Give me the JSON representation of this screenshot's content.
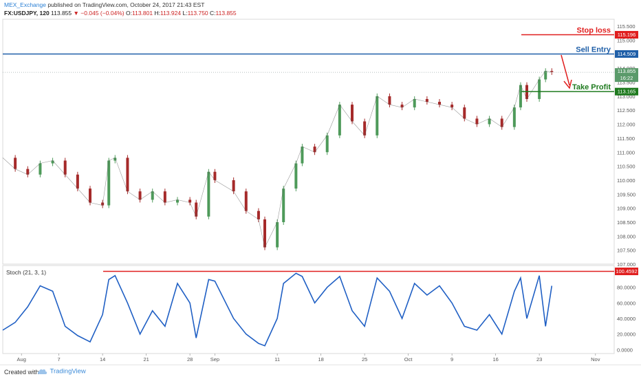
{
  "header": {
    "author": "MEX_Exchange",
    "published": " published on TradingView.com, October 24, 2017 21:43 EST",
    "symbol": "FX:USDJPY, 120",
    "last": "113.855",
    "change": "▼ −0.045 (−0.04%)",
    "ohlc_o_label": "O:",
    "ohlc_o": "113.801",
    "ohlc_h_label": "H:",
    "ohlc_h": "113.924",
    "ohlc_l_label": "L:",
    "ohlc_l": "113.750",
    "ohlc_c_label": "C:",
    "ohlc_c": "113.855"
  },
  "footer": {
    "created": "Created with",
    "brand": "TradingView"
  },
  "colors": {
    "up": "#4e9a5a",
    "down": "#a52a2a",
    "blue": "#1f5fa8",
    "red": "#e01e1e",
    "green": "#1e7a1e",
    "stoch": "#1f5fc4"
  },
  "chart_data": [
    {
      "type": "line",
      "title": "USDJPY 120 price",
      "ylim": [
        107.0,
        115.75
      ],
      "y_ticks": [
        "115.500",
        "115.000",
        "114.500",
        "114.000",
        "113.500",
        "113.000",
        "112.500",
        "112.000",
        "111.500",
        "111.000",
        "110.500",
        "110.000",
        "109.500",
        "109.000",
        "108.500",
        "108.000",
        "107.500",
        "107.000"
      ],
      "x_ticks": [
        "Aug",
        "7",
        "14",
        "21",
        "28",
        "Sep",
        "11",
        "18",
        "25",
        "Oct",
        "9",
        "16",
        "23",
        "Nov"
      ],
      "x_tick_dates": [
        "2017-08-01",
        "2017-08-07",
        "2017-08-14",
        "2017-08-21",
        "2017-08-28",
        "2017-09-01",
        "2017-09-11",
        "2017-09-18",
        "2017-09-25",
        "2017-10-02",
        "2017-10-09",
        "2017-10-16",
        "2017-10-23",
        "2017-11-01"
      ],
      "x_range": [
        "2017-07-29",
        "2017-11-04"
      ],
      "series": [
        {
          "values": [
            [
              "2017-07-29",
              110.8
            ],
            [
              "2017-07-31",
              110.4
            ],
            [
              "2017-08-02",
              110.2
            ],
            [
              "2017-08-04",
              110.6
            ],
            [
              "2017-08-06",
              110.7
            ],
            [
              "2017-08-08",
              110.2
            ],
            [
              "2017-08-10",
              109.7
            ],
            [
              "2017-08-12",
              109.2
            ],
            [
              "2017-08-14",
              109.1
            ],
            [
              "2017-08-15",
              110.7
            ],
            [
              "2017-08-16",
              110.8
            ],
            [
              "2017-08-18",
              109.6
            ],
            [
              "2017-08-20",
              109.3
            ],
            [
              "2017-08-22",
              109.6
            ],
            [
              "2017-08-24",
              109.2
            ],
            [
              "2017-08-26",
              109.3
            ],
            [
              "2017-08-28",
              109.2
            ],
            [
              "2017-08-29",
              108.7
            ],
            [
              "2017-08-31",
              110.3
            ],
            [
              "2017-09-01",
              110.0
            ],
            [
              "2017-09-04",
              109.6
            ],
            [
              "2017-09-06",
              108.9
            ],
            [
              "2017-09-08",
              108.6
            ],
            [
              "2017-09-09",
              107.6
            ],
            [
              "2017-09-11",
              108.5
            ],
            [
              "2017-09-12",
              109.7
            ],
            [
              "2017-09-14",
              110.6
            ],
            [
              "2017-09-15",
              111.2
            ],
            [
              "2017-09-17",
              111.0
            ],
            [
              "2017-09-19",
              111.6
            ],
            [
              "2017-09-21",
              112.7
            ],
            [
              "2017-09-23",
              112.1
            ],
            [
              "2017-09-25",
              111.6
            ],
            [
              "2017-09-27",
              113.0
            ],
            [
              "2017-09-29",
              112.7
            ],
            [
              "2017-10-01",
              112.6
            ],
            [
              "2017-10-03",
              112.9
            ],
            [
              "2017-10-05",
              112.8
            ],
            [
              "2017-10-07",
              112.7
            ],
            [
              "2017-10-09",
              112.6
            ],
            [
              "2017-10-11",
              112.2
            ],
            [
              "2017-10-13",
              112.0
            ],
            [
              "2017-10-15",
              112.2
            ],
            [
              "2017-10-17",
              111.9
            ],
            [
              "2017-10-19",
              112.6
            ],
            [
              "2017-10-20",
              113.4
            ],
            [
              "2017-10-21",
              112.9
            ],
            [
              "2017-10-23",
              113.6
            ],
            [
              "2017-10-24",
              113.9
            ],
            [
              "2017-10-25",
              113.86
            ]
          ]
        }
      ],
      "price_labels": {
        "stop_loss": "115.196",
        "sell_entry": "114.509",
        "last": "113.855",
        "countdown": "16:22",
        "take_profit": "113.165"
      },
      "levels": {
        "stop_loss": 115.196,
        "sell_entry": 114.509,
        "take_profit": 113.165,
        "last": 113.855
      },
      "annotations": {
        "stop_loss": "Stop loss",
        "sell_entry": "Sell Entry",
        "take_profit": "Take Profit"
      }
    },
    {
      "type": "line",
      "title": "Stoch (21, 3, 1)",
      "ylim": [
        -5,
        108
      ],
      "y_ticks": [
        "80.0000",
        "60.0000",
        "40.0000",
        "20.0000",
        "0.0000"
      ],
      "level_label": "100.4592",
      "level": 100.4592,
      "series": [
        {
          "values": [
            [
              "2017-07-29",
              25
            ],
            [
              "2017-07-31",
              35
            ],
            [
              "2017-08-02",
              55
            ],
            [
              "2017-08-04",
              82
            ],
            [
              "2017-08-06",
              75
            ],
            [
              "2017-08-08",
              30
            ],
            [
              "2017-08-10",
              18
            ],
            [
              "2017-08-12",
              10
            ],
            [
              "2017-08-14",
              45
            ],
            [
              "2017-08-15",
              90
            ],
            [
              "2017-08-16",
              95
            ],
            [
              "2017-08-18",
              60
            ],
            [
              "2017-08-20",
              20
            ],
            [
              "2017-08-22",
              50
            ],
            [
              "2017-08-24",
              30
            ],
            [
              "2017-08-26",
              85
            ],
            [
              "2017-08-28",
              60
            ],
            [
              "2017-08-29",
              15
            ],
            [
              "2017-08-31",
              90
            ],
            [
              "2017-09-01",
              88
            ],
            [
              "2017-09-04",
              40
            ],
            [
              "2017-09-06",
              20
            ],
            [
              "2017-09-08",
              8
            ],
            [
              "2017-09-09",
              5
            ],
            [
              "2017-09-11",
              40
            ],
            [
              "2017-09-12",
              85
            ],
            [
              "2017-09-14",
              98
            ],
            [
              "2017-09-15",
              94
            ],
            [
              "2017-09-17",
              60
            ],
            [
              "2017-09-19",
              80
            ],
            [
              "2017-09-21",
              94
            ],
            [
              "2017-09-23",
              50
            ],
            [
              "2017-09-25",
              30
            ],
            [
              "2017-09-27",
              92
            ],
            [
              "2017-09-29",
              75
            ],
            [
              "2017-10-01",
              40
            ],
            [
              "2017-10-03",
              85
            ],
            [
              "2017-10-05",
              70
            ],
            [
              "2017-10-07",
              82
            ],
            [
              "2017-10-09",
              60
            ],
            [
              "2017-10-11",
              30
            ],
            [
              "2017-10-13",
              25
            ],
            [
              "2017-10-15",
              45
            ],
            [
              "2017-10-17",
              20
            ],
            [
              "2017-10-19",
              75
            ],
            [
              "2017-10-20",
              92
            ],
            [
              "2017-10-21",
              40
            ],
            [
              "2017-10-23",
              95
            ],
            [
              "2017-10-24",
              30
            ],
            [
              "2017-10-25",
              82
            ]
          ]
        }
      ]
    }
  ]
}
